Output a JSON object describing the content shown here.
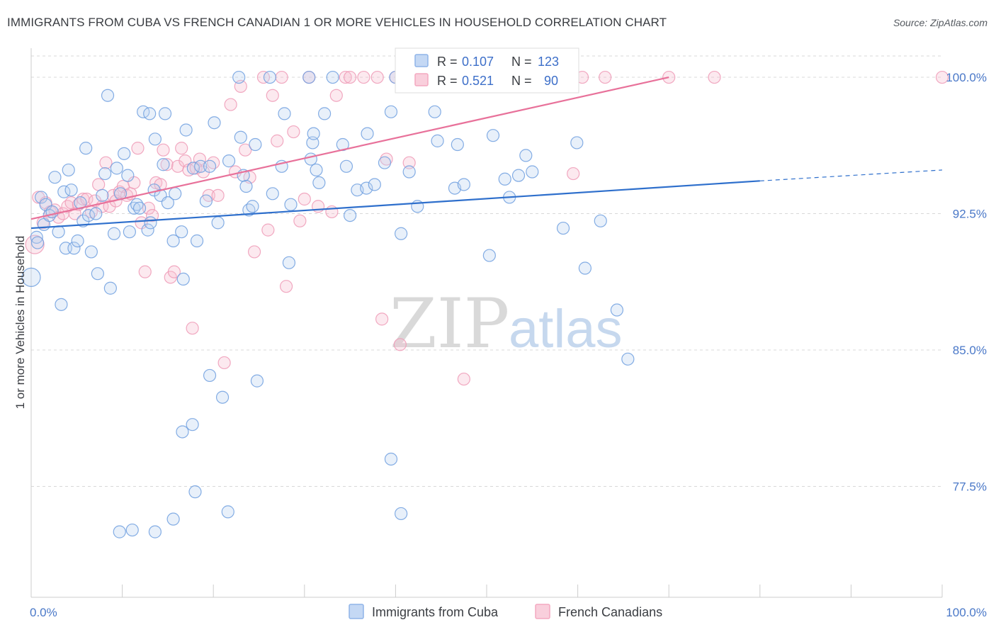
{
  "title": "IMMIGRANTS FROM CUBA VS FRENCH CANADIAN 1 OR MORE VEHICLES IN HOUSEHOLD CORRELATION CHART",
  "source": "Source: ZipAtlas.com",
  "watermark": {
    "zip": "ZIP",
    "atlas": "atlas"
  },
  "legend_box": {
    "rows": [
      {
        "r_label": "R =",
        "r_value": "0.107",
        "n_label": "N =",
        "n_value": "123",
        "color": "#8fb4e8"
      },
      {
        "r_label": "R =",
        "r_value": "0.521",
        "n_label": "N =",
        "n_value": "90",
        "color": "#f4a9c0"
      }
    ]
  },
  "bottom_legend": [
    {
      "label": "Immigrants from Cuba",
      "color": "#8fb4e8"
    },
    {
      "label": "French Canadians",
      "color": "#f4a9c0"
    }
  ],
  "colors": {
    "blue": "#6b9be0",
    "pink": "#ee8fb0",
    "blue_line": "#2e6fcc",
    "pink_line": "#e8719a",
    "grid": "#d8d8d8"
  },
  "chart_data": {
    "type": "scatter",
    "ylabel": "1 or more Vehicles in Household",
    "xlabel": "",
    "xlim": [
      0,
      100
    ],
    "ylim": [
      71.4,
      101.6
    ],
    "y_ticks": [
      77.5,
      85.0,
      92.5,
      100.0
    ],
    "y_tick_labels": [
      "77.5%",
      "85.0%",
      "92.5%",
      "100.0%"
    ],
    "x_tick_labels": [
      "0.0%",
      "100.0%"
    ],
    "grid": true,
    "series": [
      {
        "name": "Immigrants from Cuba",
        "trend": {
          "x0": 0,
          "y0": 91.7,
          "x1": 80,
          "y1": 94.3,
          "dash_to_x": 100,
          "dash_to_y": 94.9
        },
        "points": [
          [
            0,
            89.0
          ],
          [
            0.6,
            91.2
          ],
          [
            0.7,
            90.9
          ],
          [
            1.1,
            93.4
          ],
          [
            1.4,
            91.9
          ],
          [
            1.6,
            93.0
          ],
          [
            2.0,
            92.4
          ],
          [
            2.3,
            92.6
          ],
          [
            2.6,
            94.5
          ],
          [
            3.0,
            91.5
          ],
          [
            3.3,
            87.5
          ],
          [
            3.6,
            93.7
          ],
          [
            3.8,
            90.6
          ],
          [
            4.1,
            94.9
          ],
          [
            4.4,
            93.8
          ],
          [
            4.7,
            90.6
          ],
          [
            5.1,
            91.0
          ],
          [
            5.4,
            93.1
          ],
          [
            5.7,
            92.1
          ],
          [
            6.0,
            96.1
          ],
          [
            6.3,
            92.4
          ],
          [
            6.6,
            90.4
          ],
          [
            7.1,
            92.5
          ],
          [
            7.3,
            89.2
          ],
          [
            7.8,
            93.5
          ],
          [
            8.1,
            94.7
          ],
          [
            8.4,
            99.0
          ],
          [
            8.7,
            88.4
          ],
          [
            9.1,
            91.4
          ],
          [
            9.4,
            95.0
          ],
          [
            9.8,
            93.6
          ],
          [
            10.2,
            95.8
          ],
          [
            10.6,
            94.6
          ],
          [
            10.8,
            91.5
          ],
          [
            11.3,
            92.8
          ],
          [
            11.6,
            93.0
          ],
          [
            11.9,
            92.8
          ],
          [
            12.3,
            98.1
          ],
          [
            12.8,
            91.6
          ],
          [
            13.0,
            98.0
          ],
          [
            13.1,
            92.0
          ],
          [
            13.5,
            93.8
          ],
          [
            13.6,
            96.6
          ],
          [
            14.2,
            93.5
          ],
          [
            14.5,
            95.2
          ],
          [
            14.7,
            98.0
          ],
          [
            15.0,
            93.1
          ],
          [
            15.6,
            91.0
          ],
          [
            15.8,
            93.6
          ],
          [
            16.5,
            91.5
          ],
          [
            16.7,
            88.9
          ],
          [
            17.0,
            97.1
          ],
          [
            17.8,
            95.0
          ],
          [
            18.2,
            91.0
          ],
          [
            18.6,
            95.1
          ],
          [
            19.2,
            93.2
          ],
          [
            19.6,
            95.1
          ],
          [
            20.1,
            97.5
          ],
          [
            20.5,
            92.0
          ],
          [
            21.7,
            95.4
          ],
          [
            22.8,
            100.0
          ],
          [
            23.0,
            96.7
          ],
          [
            23.3,
            94.6
          ],
          [
            23.6,
            94.0
          ],
          [
            23.9,
            92.7
          ],
          [
            24.3,
            92.9
          ],
          [
            24.6,
            96.3
          ],
          [
            26.2,
            100.0
          ],
          [
            26.5,
            93.6
          ],
          [
            27.5,
            95.1
          ],
          [
            27.8,
            98.0
          ],
          [
            28.3,
            89.8
          ],
          [
            28.5,
            93.0
          ],
          [
            30.5,
            100.0
          ],
          [
            30.7,
            95.5
          ],
          [
            30.9,
            96.4
          ],
          [
            31.0,
            96.9
          ],
          [
            31.3,
            94.9
          ],
          [
            31.6,
            94.2
          ],
          [
            32.2,
            98.0
          ],
          [
            33.1,
            100.0
          ],
          [
            34.2,
            96.3
          ],
          [
            34.6,
            95.1
          ],
          [
            35.0,
            92.4
          ],
          [
            35.8,
            93.8
          ],
          [
            36.8,
            93.9
          ],
          [
            36.9,
            96.9
          ],
          [
            37.7,
            94.1
          ],
          [
            38.8,
            95.3
          ],
          [
            39.5,
            98.1
          ],
          [
            40.0,
            100.0
          ],
          [
            40.6,
            91.4
          ],
          [
            41.5,
            94.8
          ],
          [
            42.4,
            92.9
          ],
          [
            44.3,
            98.1
          ],
          [
            44.6,
            96.5
          ],
          [
            46.5,
            93.9
          ],
          [
            46.8,
            96.3
          ],
          [
            47.5,
            94.1
          ],
          [
            50.3,
            90.2
          ],
          [
            50.7,
            96.8
          ],
          [
            52.0,
            94.4
          ],
          [
            52.5,
            93.4
          ],
          [
            53.5,
            94.6
          ],
          [
            54.3,
            95.7
          ],
          [
            55.0,
            94.8
          ],
          [
            58.4,
            91.7
          ],
          [
            59.9,
            96.4
          ],
          [
            60.8,
            89.5
          ],
          [
            62.5,
            92.1
          ],
          [
            64.3,
            87.2
          ],
          [
            65.5,
            84.5
          ],
          [
            19.6,
            83.6
          ],
          [
            21.0,
            82.4
          ],
          [
            24.8,
            83.3
          ],
          [
            16.6,
            80.5
          ],
          [
            17.7,
            80.9
          ],
          [
            18.0,
            77.2
          ],
          [
            21.6,
            76.1
          ],
          [
            15.6,
            75.7
          ],
          [
            11.1,
            75.1
          ],
          [
            9.7,
            75.0
          ],
          [
            39.5,
            79.0
          ],
          [
            40.6,
            76.0
          ],
          [
            13.6,
            75.0
          ]
        ]
      },
      {
        "name": "French Canadians",
        "trend": {
          "x0": 0,
          "y0": 92.2,
          "x1": 70,
          "y1": 100.0
        },
        "points": [
          [
            0.4,
            90.8
          ],
          [
            0.8,
            93.4
          ],
          [
            1.3,
            92.0
          ],
          [
            1.6,
            93.1
          ],
          [
            2.1,
            92.6
          ],
          [
            2.6,
            92.7
          ],
          [
            3.0,
            92.3
          ],
          [
            3.5,
            92.5
          ],
          [
            4.0,
            92.9
          ],
          [
            4.4,
            93.1
          ],
          [
            4.8,
            92.5
          ],
          [
            5.2,
            93.0
          ],
          [
            5.7,
            93.3
          ],
          [
            6.1,
            93.3
          ],
          [
            6.6,
            92.6
          ],
          [
            7.0,
            93.2
          ],
          [
            7.4,
            94.1
          ],
          [
            7.8,
            92.9
          ],
          [
            8.2,
            95.3
          ],
          [
            8.6,
            92.9
          ],
          [
            9.0,
            93.5
          ],
          [
            9.3,
            93.2
          ],
          [
            9.7,
            93.7
          ],
          [
            10.1,
            94.0
          ],
          [
            10.5,
            93.5
          ],
          [
            10.9,
            93.6
          ],
          [
            11.3,
            94.2
          ],
          [
            11.7,
            96.1
          ],
          [
            12.1,
            92.0
          ],
          [
            12.5,
            89.3
          ],
          [
            12.9,
            92.8
          ],
          [
            13.3,
            92.4
          ],
          [
            13.7,
            94.2
          ],
          [
            14.2,
            94.1
          ],
          [
            14.5,
            96.0
          ],
          [
            14.9,
            95.2
          ],
          [
            15.3,
            89.0
          ],
          [
            15.7,
            89.3
          ],
          [
            16.1,
            95.1
          ],
          [
            16.5,
            96.1
          ],
          [
            16.9,
            95.4
          ],
          [
            17.3,
            94.9
          ],
          [
            17.7,
            86.2
          ],
          [
            18.1,
            95.0
          ],
          [
            18.5,
            95.5
          ],
          [
            18.9,
            94.8
          ],
          [
            19.5,
            93.5
          ],
          [
            20.0,
            95.3
          ],
          [
            20.5,
            93.5
          ],
          [
            21.2,
            84.3
          ],
          [
            21.9,
            98.5
          ],
          [
            22.4,
            94.8
          ],
          [
            23.0,
            99.5
          ],
          [
            23.5,
            96.0
          ],
          [
            24.0,
            94.5
          ],
          [
            24.5,
            90.4
          ],
          [
            25.5,
            100.0
          ],
          [
            26.0,
            91.6
          ],
          [
            26.5,
            99.0
          ],
          [
            27.0,
            96.5
          ],
          [
            27.5,
            100.0
          ],
          [
            28.0,
            88.5
          ],
          [
            28.8,
            97.0
          ],
          [
            29.5,
            92.1
          ],
          [
            30.0,
            93.3
          ],
          [
            30.5,
            100.0
          ],
          [
            31.5,
            92.9
          ],
          [
            33.0,
            92.6
          ],
          [
            33.5,
            99.0
          ],
          [
            34.5,
            100.0
          ],
          [
            35.0,
            100.0
          ],
          [
            36.5,
            100.0
          ],
          [
            38.0,
            100.0
          ],
          [
            38.5,
            86.7
          ],
          [
            39.0,
            95.5
          ],
          [
            40.0,
            100.0
          ],
          [
            40.5,
            85.3
          ],
          [
            41.5,
            95.3
          ],
          [
            42.5,
            100.0
          ],
          [
            45.0,
            100.0
          ],
          [
            47.5,
            83.4
          ],
          [
            48.5,
            100.0
          ],
          [
            52.0,
            100.0
          ],
          [
            56.0,
            100.0
          ],
          [
            59.5,
            94.7
          ],
          [
            60.5,
            100.0
          ],
          [
            63.0,
            100.0
          ],
          [
            70.0,
            100.0
          ],
          [
            75.0,
            100.0
          ],
          [
            100.0,
            100.0
          ]
        ]
      }
    ]
  }
}
